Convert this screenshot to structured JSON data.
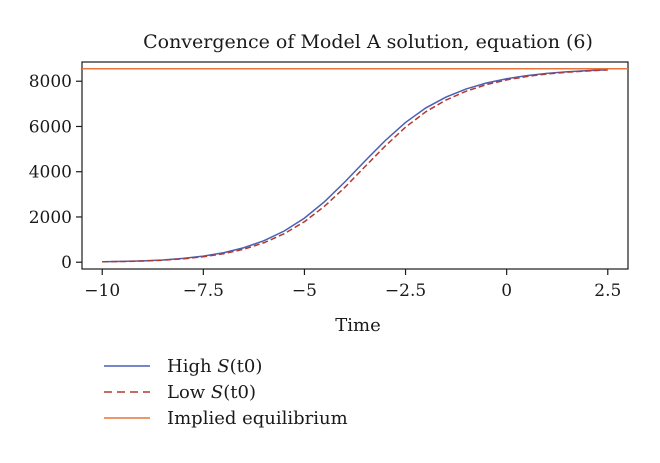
{
  "chart_data": {
    "type": "line",
    "title": "Convergence of Model A solution, equation (6)",
    "xlabel": "Time",
    "ylabel": "",
    "xlim": [
      -10.5,
      3.0
    ],
    "ylim": [
      -300,
      8850
    ],
    "xticks": [
      -10,
      -7.5,
      -5,
      -2.5,
      0,
      2.5
    ],
    "xtick_labels": [
      "−10",
      "−7.5",
      "−5",
      "−2.5",
      "0",
      "2.5"
    ],
    "yticks": [
      0,
      2000,
      4000,
      6000,
      8000
    ],
    "ytick_labels": [
      "0",
      "2000",
      "4000",
      "6000",
      "8000"
    ],
    "grid": false,
    "legend_position": "below",
    "x": [
      -10,
      -9.5,
      -9,
      -8.5,
      -8,
      -7.5,
      -7,
      -6.5,
      -6,
      -5.5,
      -5,
      -4.5,
      -4,
      -3.5,
      -3,
      -2.5,
      -2,
      -1.5,
      -1,
      -0.5,
      0,
      0.5,
      1,
      1.5,
      2,
      2.5
    ],
    "series": [
      {
        "name": "High S(t0)",
        "style": "solid",
        "color": "#4a5fb5",
        "values": [
          20,
          35,
          60,
          100,
          170,
          270,
          420,
          640,
          950,
          1380,
          1950,
          2680,
          3550,
          4480,
          5380,
          6180,
          6820,
          7300,
          7660,
          7920,
          8110,
          8250,
          8350,
          8420,
          8470,
          8510
        ]
      },
      {
        "name": "Low S(t0)",
        "style": "dashed",
        "color": "#b23a2e",
        "values": [
          18,
          30,
          52,
          88,
          150,
          240,
          375,
          575,
          860,
          1260,
          1790,
          2480,
          3310,
          4230,
          5140,
          5970,
          6650,
          7170,
          7560,
          7850,
          8060,
          8210,
          8320,
          8400,
          8455,
          8500
        ]
      },
      {
        "name": "Implied equilibrium",
        "style": "solid",
        "color": "#e8743b",
        "values": [
          8550,
          8550,
          8550,
          8550,
          8550,
          8550,
          8550,
          8550,
          8550,
          8550,
          8550,
          8550,
          8550,
          8550,
          8550,
          8550,
          8550,
          8550,
          8550,
          8550,
          8550,
          8550,
          8550,
          8550,
          8550,
          8550
        ]
      }
    ],
    "legend": [
      {
        "label_prefix": "High ",
        "label_var": "S",
        "label_suffix": "(t0)"
      },
      {
        "label_prefix": "Low ",
        "label_var": "S",
        "label_suffix": "(t0)"
      },
      {
        "label_prefix": "Implied equilibrium",
        "label_var": "",
        "label_suffix": ""
      }
    ]
  }
}
